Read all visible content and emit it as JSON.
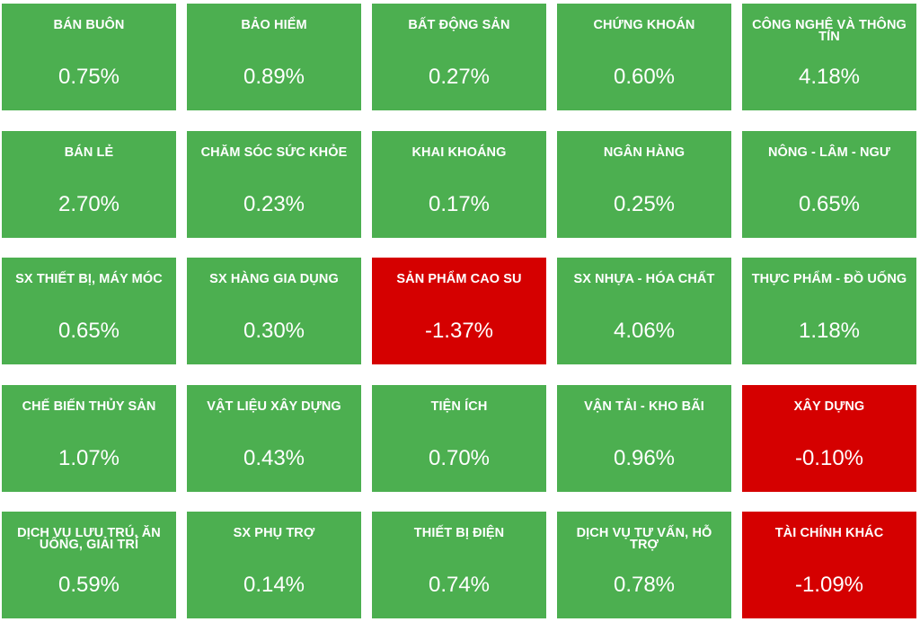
{
  "colors": {
    "up": "#4caf50",
    "down": "#d50000",
    "text": "#ffffff"
  },
  "tiles": [
    {
      "name": "BÁN BUÔN",
      "value": "0.75%",
      "status": "up"
    },
    {
      "name": "BẢO HIỂM",
      "value": "0.89%",
      "status": "up"
    },
    {
      "name": "BẤT ĐỘNG SẢN",
      "value": "0.27%",
      "status": "up"
    },
    {
      "name": "CHỨNG KHOÁN",
      "value": "0.60%",
      "status": "up"
    },
    {
      "name": "CÔNG NGHỆ VÀ THÔNG TIN",
      "value": "4.18%",
      "status": "up"
    },
    {
      "name": "BÁN LẺ",
      "value": "2.70%",
      "status": "up"
    },
    {
      "name": "CHĂM SÓC SỨC KHỎE",
      "value": "0.23%",
      "status": "up"
    },
    {
      "name": "KHAI KHOÁNG",
      "value": "0.17%",
      "status": "up"
    },
    {
      "name": "NGÂN HÀNG",
      "value": "0.25%",
      "status": "up"
    },
    {
      "name": "NÔNG - LÂM - NGƯ",
      "value": "0.65%",
      "status": "up"
    },
    {
      "name": "SX THIẾT BỊ, MÁY MÓC",
      "value": "0.65%",
      "status": "up"
    },
    {
      "name": "SX HÀNG GIA DỤNG",
      "value": "0.30%",
      "status": "up"
    },
    {
      "name": "SẢN PHẨM CAO SU",
      "value": "-1.37%",
      "status": "down"
    },
    {
      "name": "SX NHỰA - HÓA CHẤT",
      "value": "4.06%",
      "status": "up"
    },
    {
      "name": "THỰC PHẨM - ĐỒ UỐNG",
      "value": "1.18%",
      "status": "up"
    },
    {
      "name": "CHẾ BIẾN THỦY SẢN",
      "value": "1.07%",
      "status": "up"
    },
    {
      "name": "VẬT LIỆU XÂY DỰNG",
      "value": "0.43%",
      "status": "up"
    },
    {
      "name": "TIỆN ÍCH",
      "value": "0.70%",
      "status": "up"
    },
    {
      "name": "VẬN TẢI - KHO BÃI",
      "value": "0.96%",
      "status": "up"
    },
    {
      "name": "XÂY DỰNG",
      "value": "-0.10%",
      "status": "down"
    },
    {
      "name": "DỊCH VỤ LƯU TRÚ, ĂN UỐNG, GIẢI TRÍ",
      "value": "0.59%",
      "status": "up"
    },
    {
      "name": "SX PHỤ TRỢ",
      "value": "0.14%",
      "status": "up"
    },
    {
      "name": "THIẾT BỊ ĐIỆN",
      "value": "0.74%",
      "status": "up"
    },
    {
      "name": "DỊCH VỤ TƯ VẤN, HỖ TRỢ",
      "value": "0.78%",
      "status": "up"
    },
    {
      "name": "TÀI CHÍNH KHÁC",
      "value": "-1.09%",
      "status": "down"
    }
  ]
}
